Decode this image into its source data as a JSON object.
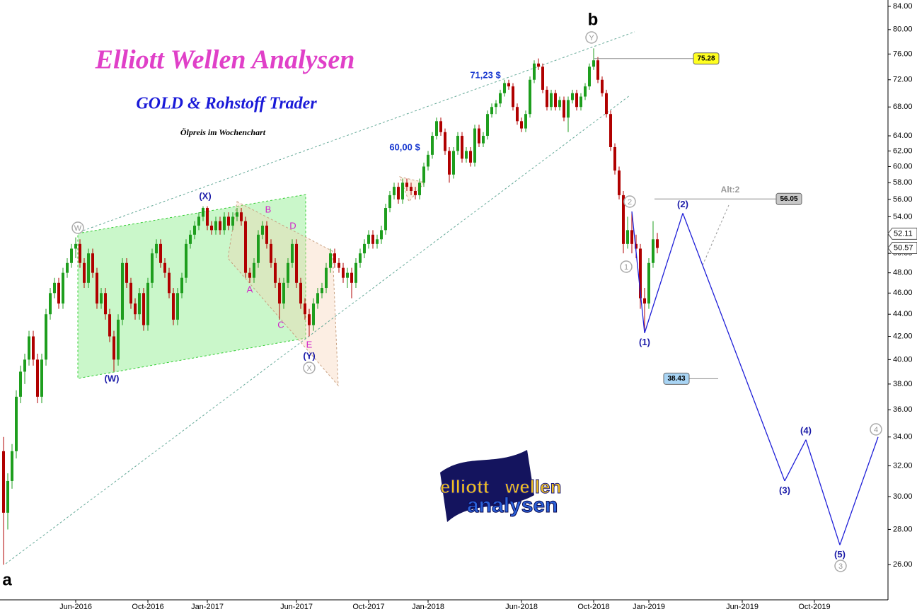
{
  "chart_data": {
    "type": "candlestick",
    "title": "Elliott Wellen Analysen",
    "subtitle": "GOLD & Rohstoff Trader",
    "note": "Ölpreis im Wochenchart",
    "log_scale": true,
    "up_color": "#1e9e1e",
    "down_color": "#b00000",
    "ylim": [
      24.15,
      85.13
    ],
    "yticks": [
      {
        "value": 26,
        "label": "26.00"
      },
      {
        "value": 28,
        "label": "28.00"
      },
      {
        "value": 30,
        "label": "30.00"
      },
      {
        "value": 32,
        "label": "32.00"
      },
      {
        "value": 34,
        "label": "34.00"
      },
      {
        "value": 36,
        "label": "36.00"
      },
      {
        "value": 38,
        "label": "38.00"
      },
      {
        "value": 40,
        "label": "40.00"
      },
      {
        "value": 42,
        "label": "42.00"
      },
      {
        "value": 44,
        "label": "44.00"
      },
      {
        "value": 46,
        "label": "46.00"
      },
      {
        "value": 48,
        "label": "48.00"
      },
      {
        "value": 50,
        "label": "50.00"
      },
      {
        "value": 52,
        "label": "52.00"
      },
      {
        "value": 54,
        "label": "54.00"
      },
      {
        "value": 56,
        "label": "56.00"
      },
      {
        "value": 58,
        "label": "58.00"
      },
      {
        "value": 60,
        "label": "60.00"
      },
      {
        "value": 62,
        "label": "62.00"
      },
      {
        "value": 64,
        "label": "64.00"
      },
      {
        "value": 68,
        "label": "68.00"
      },
      {
        "value": 72,
        "label": "72.00"
      },
      {
        "value": 76,
        "label": "76.00"
      },
      {
        "value": 80,
        "label": "80.00"
      },
      {
        "value": 84,
        "label": "84.00"
      }
    ],
    "categories": [
      null,
      null,
      null,
      null,
      null,
      null,
      null,
      null,
      null,
      null,
      null,
      null,
      null,
      null,
      null,
      null,
      null,
      "Jun-2016",
      null,
      null,
      null,
      null,
      null,
      null,
      null,
      null,
      null,
      null,
      null,
      null,
      null,
      null,
      null,
      null,
      "Oct-2016",
      null,
      null,
      null,
      null,
      null,
      null,
      null,
      null,
      null,
      null,
      null,
      null,
      null,
      "Jan-2017",
      null,
      null,
      null,
      null,
      null,
      null,
      null,
      null,
      null,
      null,
      null,
      null,
      null,
      null,
      null,
      null,
      null,
      null,
      null,
      null,
      "Jun-2017",
      null,
      null,
      null,
      null,
      null,
      null,
      null,
      null,
      null,
      null,
      null,
      null,
      null,
      null,
      null,
      null,
      "Oct-2017",
      null,
      null,
      null,
      null,
      null,
      null,
      null,
      null,
      null,
      null,
      null,
      null,
      null,
      "Jan-2018",
      null,
      null,
      null,
      null,
      null,
      null,
      null,
      null,
      null,
      null,
      null,
      null,
      null,
      null,
      null,
      null,
      null,
      null,
      null,
      null,
      null,
      "Jun-2018",
      null,
      null,
      null,
      null,
      null,
      null,
      null,
      null,
      null,
      null,
      null,
      null,
      null,
      null,
      null,
      null,
      "Oct-2018",
      null,
      null,
      null,
      null,
      null,
      null,
      null,
      null,
      null,
      null,
      null,
      null,
      "Jan-2019",
      null,
      null,
      null,
      null,
      null,
      null,
      null,
      null,
      null,
      null,
      null,
      null,
      null,
      null,
      null,
      null,
      null,
      null,
      null,
      null,
      null,
      "Jun-2019",
      null,
      null,
      null,
      null,
      null,
      null,
      null,
      null,
      null,
      null,
      null,
      null,
      null,
      null,
      null,
      null,
      "Oct-2019",
      null,
      null,
      null,
      null,
      null,
      null,
      null,
      null,
      null,
      null,
      null,
      null,
      null,
      null,
      null
    ],
    "candles": [
      [
        33,
        34,
        26,
        29
      ],
      [
        29,
        31.5,
        28,
        31
      ],
      [
        31,
        33.5,
        30.5,
        33
      ],
      [
        33,
        37.5,
        32.5,
        37
      ],
      [
        37,
        39.5,
        36.5,
        39
      ],
      [
        39,
        40.5,
        38,
        40
      ],
      [
        40,
        42.5,
        39.5,
        42
      ],
      [
        42,
        42.5,
        39.5,
        40
      ],
      [
        40,
        40.5,
        36.5,
        37
      ],
      [
        37,
        40.5,
        36.5,
        40
      ],
      [
        40,
        44.5,
        39.5,
        44
      ],
      [
        44,
        46.5,
        43.5,
        46
      ],
      [
        46,
        47.5,
        45.5,
        47
      ],
      [
        47,
        47.5,
        44.5,
        45
      ],
      [
        45,
        48.5,
        44.5,
        48
      ],
      [
        48,
        49.5,
        47.5,
        49
      ],
      [
        49,
        51,
        48.5,
        50.5
      ],
      [
        50.5,
        51.7,
        49.5,
        51
      ],
      [
        51,
        51.5,
        48.5,
        49
      ],
      [
        49,
        49.5,
        46.5,
        47
      ],
      [
        47,
        50.5,
        46.5,
        50
      ],
      [
        50,
        50.5,
        47.5,
        48
      ],
      [
        48,
        48.5,
        44.5,
        45
      ],
      [
        45,
        46.5,
        44.5,
        46
      ],
      [
        46,
        46.5,
        43.5,
        44
      ],
      [
        44,
        44.5,
        41.5,
        42
      ],
      [
        42,
        42.5,
        39,
        40
      ],
      [
        40,
        44,
        39.5,
        43.5
      ],
      [
        43.5,
        49.5,
        43,
        49
      ],
      [
        49,
        49.5,
        46.5,
        47
      ],
      [
        47,
        47.5,
        44.5,
        45
      ],
      [
        45,
        45.5,
        43.5,
        44
      ],
      [
        44,
        46.5,
        43.5,
        46
      ],
      [
        46,
        46.5,
        42.5,
        43
      ],
      [
        43,
        47.5,
        42.5,
        47
      ],
      [
        47,
        50.5,
        46.5,
        50
      ],
      [
        50,
        51.5,
        49.5,
        51
      ],
      [
        51,
        51.5,
        48.5,
        49
      ],
      [
        49,
        49.5,
        47.5,
        48
      ],
      [
        48,
        48.5,
        45.5,
        46
      ],
      [
        46,
        46.5,
        43,
        43.5
      ],
      [
        43.5,
        46.5,
        43,
        46
      ],
      [
        46,
        48,
        45.5,
        47.5
      ],
      [
        47.5,
        51.5,
        47,
        51
      ],
      [
        51,
        52.5,
        50.5,
        52
      ],
      [
        52,
        53.5,
        51.5,
        53
      ],
      [
        53,
        54.5,
        52.5,
        54
      ],
      [
        54,
        55.2,
        53.5,
        55
      ],
      [
        55,
        55.2,
        52.5,
        53
      ],
      [
        53,
        53.5,
        52,
        52.5
      ],
      [
        52.5,
        54,
        52,
        53.5
      ],
      [
        53.5,
        54,
        52,
        52.5
      ],
      [
        52.5,
        54.5,
        52,
        54
      ],
      [
        54,
        54.5,
        52.5,
        53
      ],
      [
        53,
        54.5,
        52.5,
        54
      ],
      [
        54,
        55,
        53.5,
        54.5
      ],
      [
        54.5,
        55,
        53,
        53.5
      ],
      [
        53.5,
        54,
        47.5,
        48
      ],
      [
        48,
        48.5,
        47,
        47.5
      ],
      [
        47.5,
        49.5,
        47,
        49
      ],
      [
        49,
        52.5,
        48.5,
        52
      ],
      [
        52,
        53.5,
        51.5,
        53
      ],
      [
        53,
        53.5,
        50.5,
        51
      ],
      [
        51,
        51.5,
        48.5,
        49
      ],
      [
        49,
        49.5,
        46.5,
        47
      ],
      [
        47,
        47.5,
        43.5,
        45
      ],
      [
        45,
        47.5,
        44.5,
        47
      ],
      [
        47,
        49.5,
        46.5,
        49
      ],
      [
        49,
        51.5,
        48.5,
        51
      ],
      [
        51,
        51.5,
        46.5,
        47
      ],
      [
        47,
        47.5,
        44.5,
        45
      ],
      [
        45,
        45.5,
        43.5,
        44
      ],
      [
        44,
        44.5,
        42,
        43
      ],
      [
        43,
        45.5,
        42.5,
        45
      ],
      [
        45,
        46.5,
        44.5,
        46
      ],
      [
        46,
        47,
        45.5,
        46.5
      ],
      [
        46.5,
        49,
        46,
        48.5
      ],
      [
        48.5,
        50.5,
        48,
        50
      ],
      [
        50,
        50.5,
        48.5,
        49
      ],
      [
        49,
        49.5,
        48,
        48.5
      ],
      [
        48.5,
        49,
        47,
        47.5
      ],
      [
        47.5,
        48.5,
        46.5,
        48
      ],
      [
        48,
        48.5,
        45.5,
        47
      ],
      [
        47,
        49.5,
        46.5,
        49
      ],
      [
        49,
        50.5,
        48.5,
        50
      ],
      [
        50,
        51.5,
        49.5,
        51
      ],
      [
        51,
        52.5,
        50.5,
        52
      ],
      [
        52,
        52.5,
        50.5,
        51
      ],
      [
        51,
        52,
        50.5,
        51.5
      ],
      [
        51.5,
        53,
        51,
        52.5
      ],
      [
        52.5,
        55.5,
        52,
        55
      ],
      [
        55,
        57,
        54.5,
        56.5
      ],
      [
        56.5,
        58,
        56,
        57.5
      ],
      [
        57.5,
        58,
        55.5,
        56
      ],
      [
        56,
        58.5,
        55.5,
        58
      ],
      [
        58,
        58.5,
        57,
        57.5
      ],
      [
        57.5,
        58,
        56.5,
        57
      ],
      [
        57,
        57.5,
        56,
        56.5
      ],
      [
        56.5,
        58.5,
        56,
        58
      ],
      [
        58,
        60.5,
        57.5,
        60
      ],
      [
        60,
        62,
        59.5,
        61.5
      ],
      [
        61.5,
        64.5,
        61,
        64
      ],
      [
        64,
        66.5,
        63.5,
        66
      ],
      [
        66,
        66.5,
        64,
        64.5
      ],
      [
        64.5,
        65,
        61.5,
        62
      ],
      [
        62,
        62.5,
        58,
        59
      ],
      [
        59,
        62.5,
        58.5,
        62
      ],
      [
        62,
        64.5,
        61.5,
        64
      ],
      [
        64,
        64.5,
        60.5,
        61
      ],
      [
        61,
        62.5,
        60.5,
        62
      ],
      [
        62,
        62.5,
        60,
        60.5
      ],
      [
        60.5,
        65.5,
        60,
        65
      ],
      [
        65,
        65.5,
        62.5,
        63
      ],
      [
        63,
        64.5,
        62.5,
        64
      ],
      [
        64,
        67.5,
        63.5,
        67
      ],
      [
        67,
        68.5,
        66.5,
        68
      ],
      [
        68,
        69,
        67,
        68.5
      ],
      [
        68.5,
        70.5,
        68,
        70
      ],
      [
        70,
        72,
        69.5,
        71.5
      ],
      [
        71.5,
        72,
        70.5,
        71
      ],
      [
        71,
        71.5,
        67.5,
        68
      ],
      [
        68,
        68.5,
        65.5,
        66
      ],
      [
        66,
        66.5,
        64.5,
        65
      ],
      [
        65,
        67.5,
        64.5,
        67
      ],
      [
        67,
        72.5,
        66.5,
        72
      ],
      [
        72,
        75,
        71.5,
        74.5
      ],
      [
        74.5,
        75.3,
        73.5,
        74
      ],
      [
        74,
        74.5,
        70,
        70.5
      ],
      [
        70.5,
        71,
        67.5,
        68
      ],
      [
        68,
        70.5,
        67.5,
        70
      ],
      [
        70,
        70.5,
        67.5,
        68
      ],
      [
        68,
        69.5,
        67.5,
        69
      ],
      [
        69,
        69.5,
        66,
        66.5
      ],
      [
        66.5,
        69.5,
        64.5,
        69
      ],
      [
        69,
        70.5,
        68.5,
        70
      ],
      [
        70,
        70.5,
        67.5,
        68
      ],
      [
        68,
        70,
        67.5,
        69.5
      ],
      [
        69.5,
        71.5,
        69,
        71
      ],
      [
        71,
        74.5,
        70.5,
        74
      ],
      [
        74,
        76.9,
        73.5,
        75
      ],
      [
        75,
        75.5,
        71.5,
        72
      ],
      [
        72,
        72.5,
        69.5,
        70
      ],
      [
        70,
        70.5,
        66.5,
        67
      ],
      [
        67,
        67.5,
        62,
        62.5
      ],
      [
        62.5,
        63,
        59,
        59.5
      ],
      [
        59.5,
        60,
        56,
        56.5
      ],
      [
        56.5,
        57,
        50,
        51
      ],
      [
        51,
        54,
        50.5,
        52.5
      ],
      [
        52.5,
        54.5,
        50,
        51
      ],
      [
        51,
        52,
        49.5,
        50.5
      ],
      [
        50.5,
        51,
        44.5,
        45.5
      ],
      [
        45.5,
        46.5,
        42.4,
        45
      ],
      [
        45,
        49.5,
        44.5,
        49
      ],
      [
        49,
        53.5,
        48.5,
        51.5
      ],
      [
        51.5,
        52.2,
        50,
        50.57
      ]
    ],
    "forecast": {
      "color": "#1f1fd8",
      "values": [
        null,
        null,
        null,
        null,
        null,
        null,
        null,
        null,
        null,
        null,
        null,
        null,
        null,
        null,
        null,
        null,
        null,
        null,
        null,
        null,
        null,
        null,
        null,
        null,
        null,
        null,
        null,
        null,
        null,
        null,
        null,
        null,
        null,
        null,
        null,
        null,
        null,
        null,
        null,
        null,
        null,
        null,
        null,
        null,
        null,
        null,
        null,
        null,
        null,
        null,
        null,
        null,
        null,
        null,
        null,
        null,
        null,
        null,
        null,
        null,
        null,
        null,
        null,
        null,
        null,
        null,
        null,
        null,
        null,
        null,
        null,
        null,
        null,
        null,
        null,
        null,
        null,
        null,
        null,
        null,
        null,
        null,
        null,
        null,
        null,
        null,
        null,
        null,
        null,
        null,
        null,
        null,
        null,
        null,
        null,
        null,
        null,
        null,
        null,
        null,
        null,
        null,
        null,
        null,
        null,
        null,
        null,
        null,
        null,
        null,
        null,
        null,
        null,
        null,
        null,
        null,
        null,
        null,
        null,
        null,
        null,
        null,
        null,
        null,
        null,
        null,
        null,
        null,
        null,
        null,
        null,
        null,
        null,
        null,
        null,
        null,
        null,
        null,
        null,
        null,
        null,
        null,
        null,
        null,
        null,
        null,
        null,
        null,
        54.6,
        null,
        null,
        42.3,
        null,
        null,
        null,
        null,
        null,
        null,
        null,
        null,
        54.4,
        null,
        null,
        null,
        null,
        null,
        null,
        null,
        null,
        null,
        null,
        null,
        null,
        null,
        null,
        null,
        null,
        null,
        null,
        null,
        null,
        null,
        null,
        null,
        31.0,
        null,
        null,
        null,
        null,
        33.8,
        null,
        null,
        null,
        null,
        null,
        null,
        null,
        27.1,
        null,
        null,
        null,
        null,
        null,
        null,
        null,
        null,
        34.0
      ],
      "labels": [
        "(1)",
        "(2)",
        "(3)",
        "(4)",
        "(5)"
      ]
    },
    "levels": [
      75.28,
      56.05,
      38.43
    ],
    "level_colors": [
      "#ffff20",
      "#c8c8c8",
      "#a8d4f4"
    ],
    "price_tags": [
      52.11,
      50.57
    ],
    "annotations": [
      "a",
      "b",
      "W",
      "X",
      "Y",
      "(W)",
      "(X)",
      "(Y)",
      "A",
      "B",
      "C",
      "D",
      "E",
      "1",
      "2",
      "3",
      "4",
      "71,23 $",
      "60,00 $",
      "Alt:2"
    ],
    "logo": [
      "elliott",
      "wellen",
      "analysen"
    ]
  }
}
